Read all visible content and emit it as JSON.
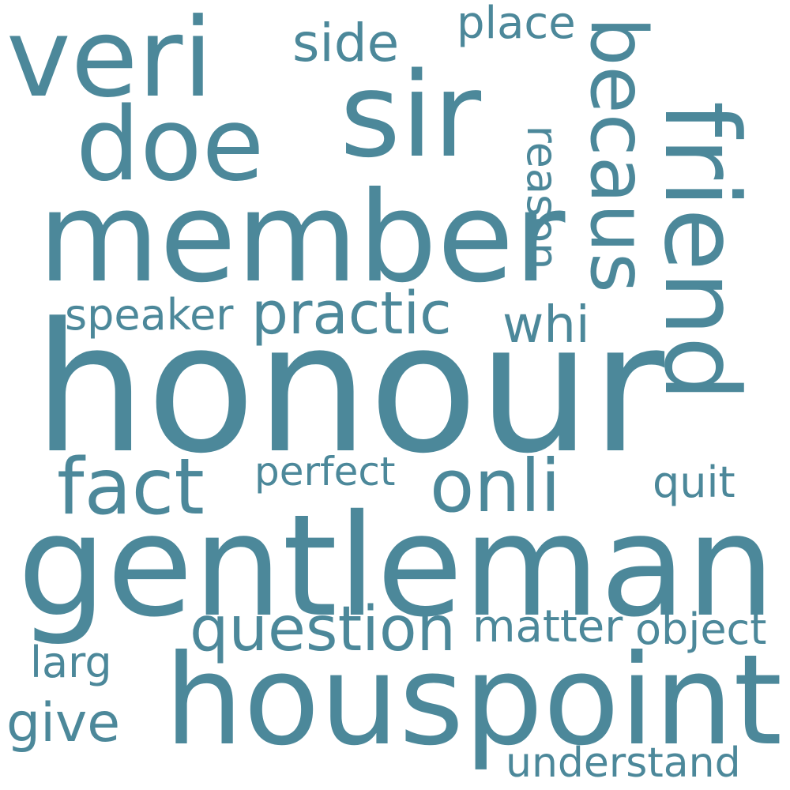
{
  "word_color": "#4c889a",
  "background": "#ffffff",
  "words": {
    "honour": "honour",
    "gentleman": "gentleman",
    "houspoint": "houspoint",
    "member": "member",
    "sir": "sir",
    "friend": "friend",
    "veri": "veri",
    "doe": "doe",
    "becaus": "becaus",
    "fact": "fact",
    "onli": "onli",
    "question": "question",
    "practic": "practic",
    "speaker": "speaker",
    "side": "side",
    "place": "place",
    "reason": "reason",
    "whi": "whi",
    "perfect": "perfect",
    "quit": "quit",
    "matter": "matter",
    "object": "object",
    "larg": "larg",
    "give": "give",
    "understand": "understand"
  }
}
